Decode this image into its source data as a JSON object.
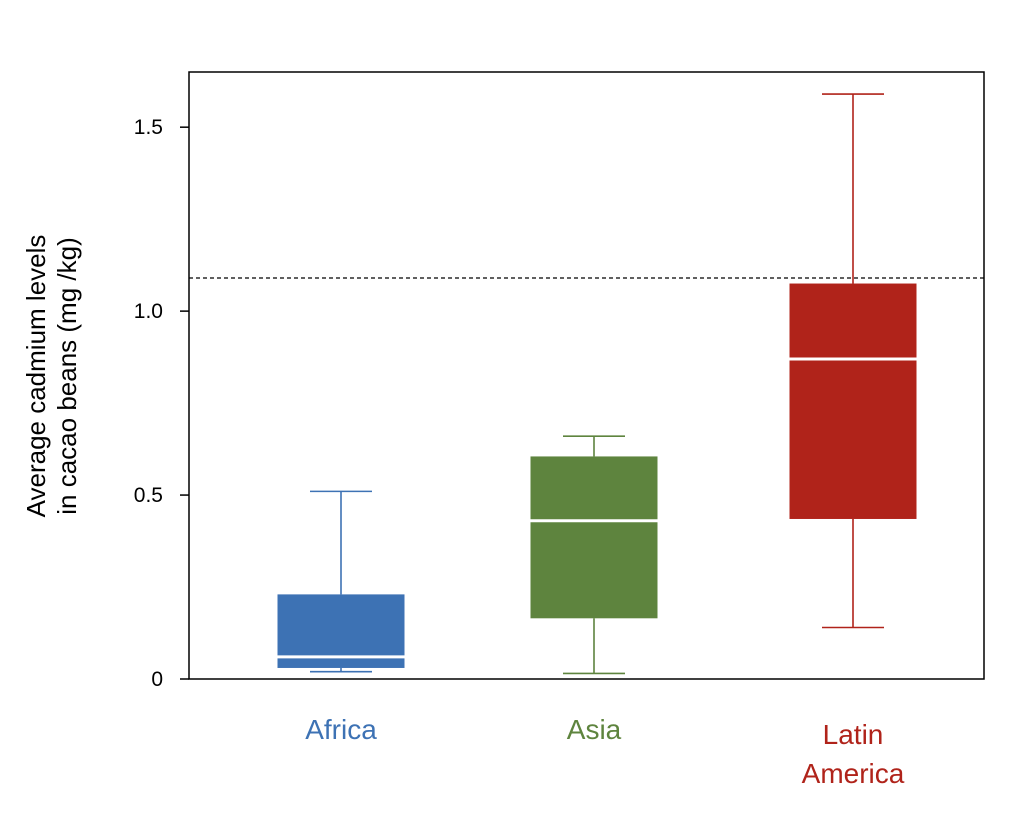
{
  "chart_data": {
    "type": "box",
    "title": "",
    "xlabel": "",
    "ylabel_lines": [
      "Average cadmium levels",
      "in cacao beans (mg /kg)"
    ],
    "ylim": [
      0,
      1.65
    ],
    "yticks": [
      {
        "value": 0,
        "label": "0"
      },
      {
        "value": 0.5,
        "label": "0.5"
      },
      {
        "value": 1.0,
        "label": "1.0"
      },
      {
        "value": 1.5,
        "label": "1.5"
      }
    ],
    "reference_line": {
      "value": 1.09,
      "style": "dashed"
    },
    "grid": false,
    "legend": "none",
    "categories": [
      {
        "label_lines": [
          "Africa"
        ],
        "color": "#3d72b4",
        "min": 0.02,
        "q1": 0.03,
        "median": 0.06,
        "q3": 0.23,
        "max": 0.51
      },
      {
        "label_lines": [
          "Asia"
        ],
        "color": "#5e843e",
        "min": 0.015,
        "q1": 0.165,
        "median": 0.43,
        "q3": 0.605,
        "max": 0.66
      },
      {
        "label_lines": [
          "Latin",
          "America"
        ],
        "color": "#b0231a",
        "min": 0.14,
        "q1": 0.435,
        "median": 0.87,
        "q3": 1.075,
        "max": 1.59
      }
    ]
  }
}
